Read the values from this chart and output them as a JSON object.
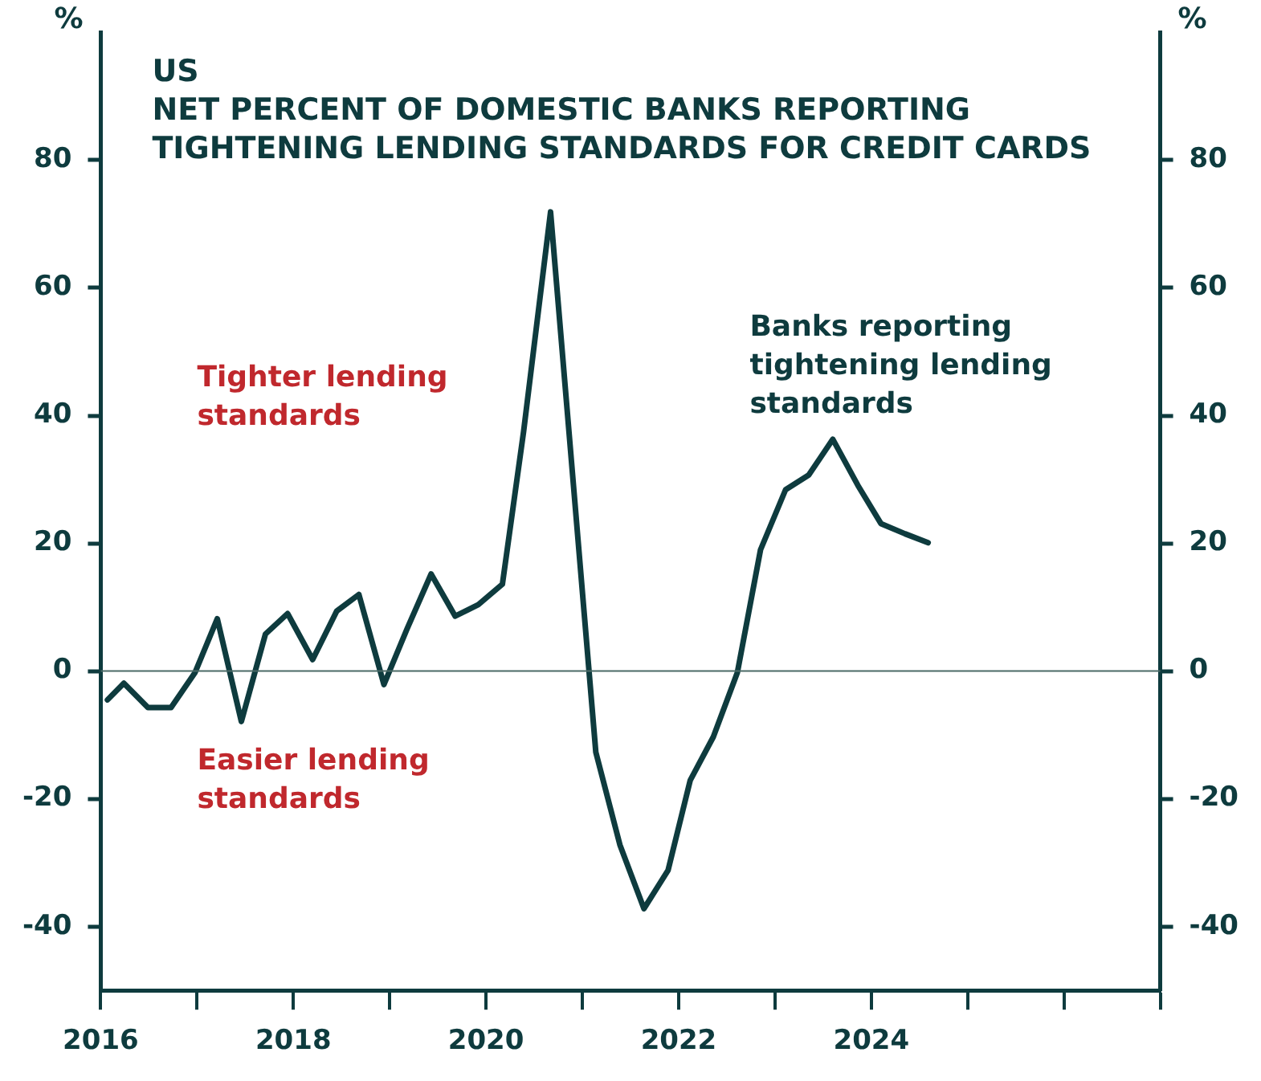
{
  "chart_data": {
    "type": "line",
    "title": "US",
    "subtitle": "NET PERCENT OF DOMESTIC BANKS REPORTING TIGHTENING LENDING STANDARDS FOR CREDIT CARDS",
    "ylabel": "%",
    "y2label": "%",
    "annotations": [
      "Tighter lending standards",
      "Easier lending standards"
    ],
    "series": [
      {
        "name": "Banks reporting tightening lending standards",
        "color": "#0e3b3e",
        "x": [
          2016.07,
          2016.24,
          2016.49,
          2016.73,
          2016.98,
          2017.21,
          2017.46,
          2017.71,
          2017.94,
          2018.2,
          2018.45,
          2018.68,
          2018.94,
          2019.18,
          2019.43,
          2019.68,
          2019.92,
          2020.17,
          2020.39,
          2020.67,
          2021.14,
          2021.39,
          2021.64,
          2021.89,
          2022.12,
          2022.36,
          2022.61,
          2022.85,
          2023.11,
          2023.35,
          2023.6,
          2023.86,
          2024.1,
          2024.35,
          2024.59
        ],
        "values": [
          -4.5,
          -1.9,
          -5.7,
          -5.7,
          -0.2,
          8.2,
          -7.9,
          5.8,
          9,
          1.8,
          9.4,
          12,
          -2.1,
          6.6,
          15.2,
          8.6,
          10.4,
          13.6,
          37.5,
          71.9,
          -12.7,
          -27.2,
          -37.2,
          -31.2,
          -17.1,
          -10.3,
          -0.2,
          19,
          28.4,
          30.7,
          36.3,
          29.1,
          23.1,
          21.5,
          20.1
        ]
      }
    ],
    "xlim": [
      2016,
      2027
    ],
    "xticks": [
      {
        "value": 2016,
        "label": "2016"
      },
      {
        "value": 2017,
        "label": null
      },
      {
        "value": 2018,
        "label": "2018"
      },
      {
        "value": 2019,
        "label": null
      },
      {
        "value": 2020,
        "label": "2020"
      },
      {
        "value": 2021,
        "label": null
      },
      {
        "value": 2022,
        "label": "2022"
      },
      {
        "value": 2023,
        "label": null
      },
      {
        "value": 2024,
        "label": "2024"
      },
      {
        "value": 2025,
        "label": null
      },
      {
        "value": 2026,
        "label": null
      },
      {
        "value": 2027,
        "label": null
      }
    ],
    "ylim": [
      -50,
      100
    ],
    "yticks": [
      -40,
      -20,
      0,
      20,
      40,
      60,
      80
    ],
    "y2lim": [
      -50,
      100
    ],
    "y2ticks": [
      -40,
      -20,
      0,
      20,
      40,
      60,
      80
    ],
    "ref_lines": [
      {
        "axis": "y",
        "value": 0,
        "color": "#4a6a66"
      }
    ],
    "grid": false,
    "legend": false,
    "marker": "none",
    "line_style": "solid"
  }
}
